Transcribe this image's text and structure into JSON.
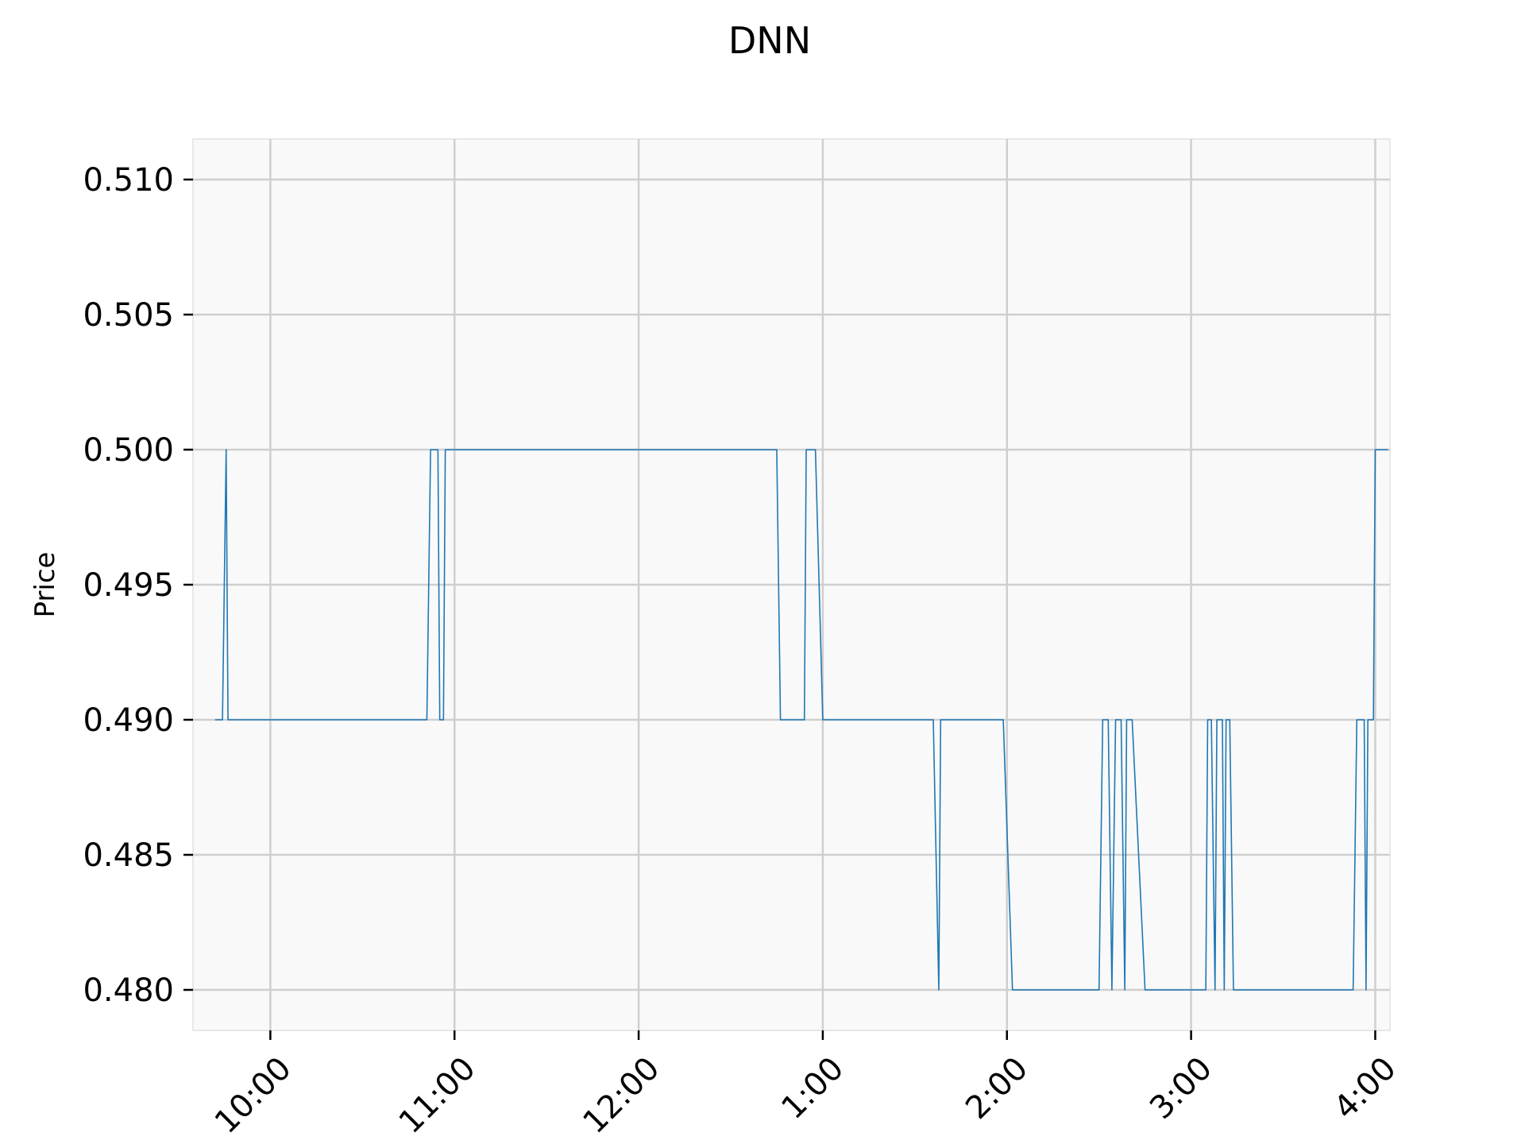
{
  "chart_data": {
    "type": "line",
    "title": "DNN",
    "xlabel": "",
    "ylabel": "Price",
    "x_unit": "time of day (hours, 24h clock)",
    "xlim": [
      9.58,
      16.08
    ],
    "ylim": [
      0.4785,
      0.5115
    ],
    "grid": true,
    "legend": "none",
    "colors": {
      "line": "#1f77b4",
      "plot_bg": "#f9f9f9",
      "grid": "#cfcfcf",
      "frame": "#e8e8e8"
    },
    "x_ticks": [
      {
        "value": 10,
        "label": "10:00"
      },
      {
        "value": 11,
        "label": "11:00"
      },
      {
        "value": 12,
        "label": "12:00"
      },
      {
        "value": 13,
        "label": "1:00"
      },
      {
        "value": 14,
        "label": "2:00"
      },
      {
        "value": 15,
        "label": "3:00"
      },
      {
        "value": 16,
        "label": "4:00"
      }
    ],
    "y_ticks": [
      {
        "value": 0.48,
        "label": "0.480"
      },
      {
        "value": 0.485,
        "label": "0.485"
      },
      {
        "value": 0.49,
        "label": "0.490"
      },
      {
        "value": 0.495,
        "label": "0.495"
      },
      {
        "value": 0.5,
        "label": "0.500"
      },
      {
        "value": 0.505,
        "label": "0.505"
      },
      {
        "value": 0.51,
        "label": "0.510"
      }
    ],
    "series": [
      {
        "points": [
          [
            9.7,
            0.49
          ],
          [
            9.74,
            0.49
          ],
          [
            9.76,
            0.5
          ],
          [
            9.77,
            0.49
          ],
          [
            10.85,
            0.49
          ],
          [
            10.87,
            0.5
          ],
          [
            10.91,
            0.5
          ],
          [
            10.92,
            0.49
          ],
          [
            10.94,
            0.49
          ],
          [
            10.95,
            0.5
          ],
          [
            12.75,
            0.5
          ],
          [
            12.77,
            0.49
          ],
          [
            12.9,
            0.49
          ],
          [
            12.91,
            0.5
          ],
          [
            12.96,
            0.5
          ],
          [
            13.0,
            0.49
          ],
          [
            13.6,
            0.49
          ],
          [
            13.63,
            0.48
          ],
          [
            13.64,
            0.49
          ],
          [
            13.98,
            0.49
          ],
          [
            14.03,
            0.48
          ],
          [
            14.5,
            0.48
          ],
          [
            14.52,
            0.49
          ],
          [
            14.55,
            0.49
          ],
          [
            14.57,
            0.48
          ],
          [
            14.59,
            0.49
          ],
          [
            14.62,
            0.49
          ],
          [
            14.64,
            0.48
          ],
          [
            14.65,
            0.49
          ],
          [
            14.68,
            0.49
          ],
          [
            14.75,
            0.48
          ],
          [
            15.08,
            0.48
          ],
          [
            15.09,
            0.49
          ],
          [
            15.11,
            0.49
          ],
          [
            15.13,
            0.48
          ],
          [
            15.14,
            0.49
          ],
          [
            15.17,
            0.49
          ],
          [
            15.18,
            0.48
          ],
          [
            15.19,
            0.49
          ],
          [
            15.21,
            0.49
          ],
          [
            15.23,
            0.48
          ],
          [
            15.88,
            0.48
          ],
          [
            15.9,
            0.49
          ],
          [
            15.94,
            0.49
          ],
          [
            15.95,
            0.48
          ],
          [
            15.96,
            0.49
          ],
          [
            15.99,
            0.49
          ],
          [
            16.0,
            0.5
          ],
          [
            16.07,
            0.5
          ]
        ]
      }
    ]
  }
}
